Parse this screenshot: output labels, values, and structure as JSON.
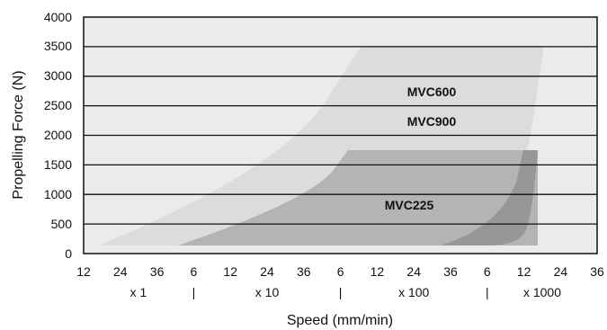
{
  "chart_data": {
    "type": "area",
    "title": "",
    "xlabel": "Speed (mm/min)",
    "ylabel": "Propelling Force (N)",
    "ylim": [
      0,
      4000
    ],
    "y_ticks": [
      "0",
      "500",
      "1000",
      "1500",
      "2000",
      "2500",
      "3000",
      "3500",
      "4000"
    ],
    "x_scale": "log",
    "x_tick_labels": [
      "12",
      "24",
      "36",
      "6",
      "12",
      "24",
      "36",
      "6",
      "12",
      "24",
      "36",
      "6",
      "12",
      "24",
      "36"
    ],
    "x_multipliers": [
      "x 1",
      "|",
      "x 10",
      "|",
      "x 100",
      "|",
      "x 1000"
    ],
    "grid": "horizontal",
    "series": [
      {
        "name": "MVC600",
        "max_force": 3500,
        "min_force": 100
      },
      {
        "name": "MVC900",
        "max_force": 3500,
        "min_force": 100
      },
      {
        "name": "MVC225",
        "max_force": 1750,
        "min_force": 100
      }
    ],
    "colors": {
      "plot_background": "#ebebeb",
      "outer_region": "#dcdcdc",
      "inner_region": "#b4b4b4",
      "overlap_region": "#979797",
      "grid": "#111111"
    }
  }
}
